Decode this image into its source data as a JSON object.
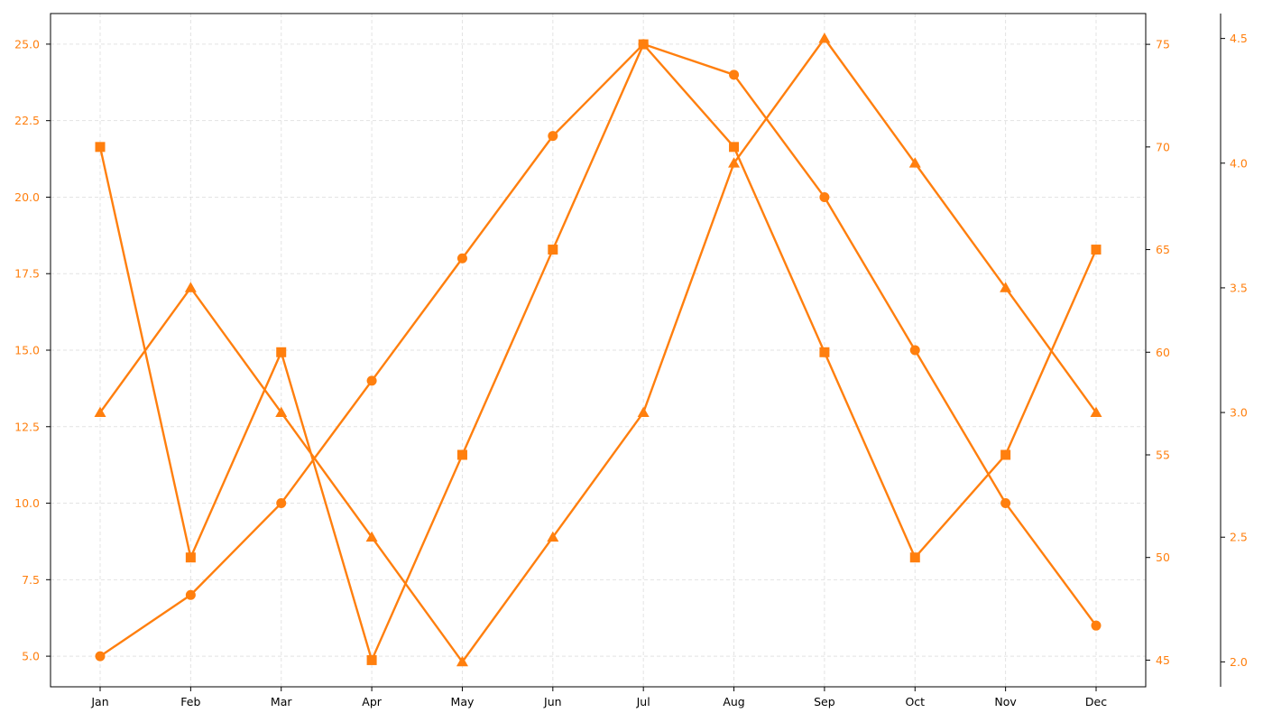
{
  "chart_data": {
    "type": "line",
    "categories": [
      "Jan",
      "Feb",
      "Mar",
      "Apr",
      "May",
      "Jun",
      "Jul",
      "Aug",
      "Sep",
      "Oct",
      "Nov",
      "Dec"
    ],
    "colors": {
      "series": "#ff7f0e",
      "axis": "#000000",
      "grid": "#e3e3e3"
    },
    "grid": true,
    "axes": {
      "left": {
        "ylim": [
          4.0,
          26.0
        ],
        "ticks": [
          "5.0",
          "7.5",
          "10.0",
          "12.5",
          "15.0",
          "17.5",
          "20.0",
          "22.5",
          "25.0"
        ],
        "tick_color": "#ff7f0e"
      },
      "right_inner": {
        "ylim": [
          43.7,
          76.5
        ],
        "ticks": [
          "45",
          "50",
          "55",
          "60",
          "65",
          "70",
          "75"
        ],
        "tick_color": "#ff7f0e"
      },
      "right_outer": {
        "ylim": [
          1.9,
          4.6
        ],
        "ticks": [
          "2.0",
          "2.5",
          "3.0",
          "3.5",
          "4.0",
          "4.5"
        ],
        "tick_color": "#ff7f0e"
      }
    },
    "series": [
      {
        "axis": "left",
        "marker": "circle",
        "color": "#ff7f0e",
        "values": [
          5,
          7,
          10,
          14,
          18,
          22,
          25,
          24,
          20,
          15,
          10,
          6
        ]
      },
      {
        "axis": "right_inner",
        "marker": "square",
        "color": "#ff7f0e",
        "values": [
          70,
          50,
          60,
          45,
          55,
          65,
          75,
          70,
          60,
          50,
          55,
          65
        ]
      },
      {
        "axis": "right_outer",
        "marker": "triangle",
        "color": "#ff7f0e",
        "values": [
          3.0,
          3.5,
          3.0,
          2.5,
          2.0,
          2.5,
          3.0,
          4.0,
          4.5,
          4.0,
          3.5,
          3.0
        ]
      }
    ]
  }
}
